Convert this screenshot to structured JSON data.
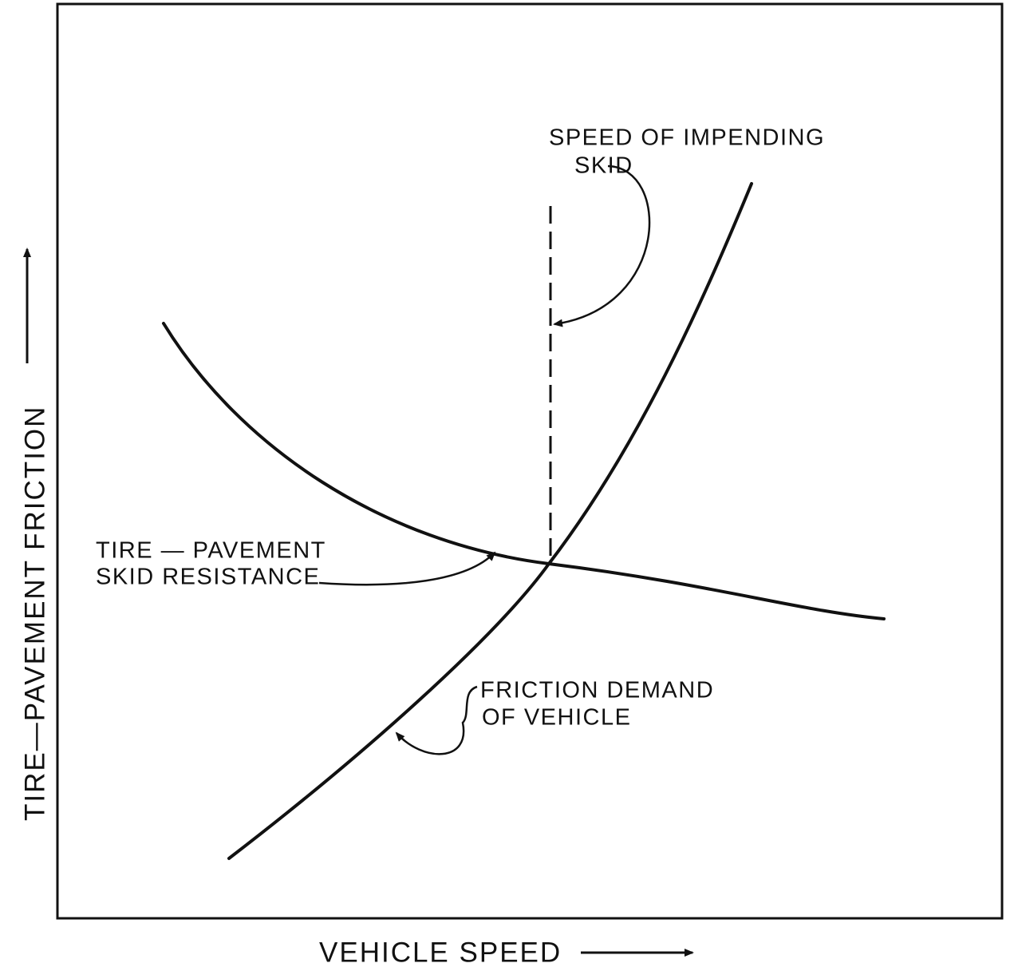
{
  "axes": {
    "x_label": "VEHICLE SPEED",
    "y_label": "TIRE—PAVEMENT FRICTION"
  },
  "annotations": [
    {
      "lines": [
        "SPEED OF IMPENDING",
        "SKID"
      ]
    },
    {
      "lines": [
        "TIRE — PAVEMENT",
        "SKID RESISTANCE"
      ]
    },
    {
      "lines": [
        "FRICTION DEMAND",
        "OF VEHICLE"
      ]
    }
  ]
}
